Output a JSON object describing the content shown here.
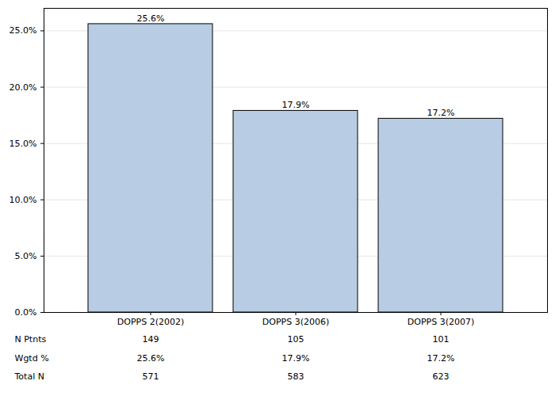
{
  "chart_data": {
    "type": "bar",
    "categories": [
      "DOPPS 2(2002)",
      "DOPPS 3(2006)",
      "DOPPS 3(2007)"
    ],
    "values": [
      25.6,
      17.9,
      17.2
    ],
    "value_labels": [
      "25.6%",
      "17.9%",
      "17.2%"
    ],
    "data_labels": true,
    "color": "#b8cce4",
    "ylim": [
      0,
      27
    ],
    "yticks": [
      {
        "value": 0,
        "label": "0.0%"
      },
      {
        "value": 5,
        "label": "5.0%"
      },
      {
        "value": 10,
        "label": "10.0%"
      },
      {
        "value": 15,
        "label": "15.0%"
      },
      {
        "value": 20,
        "label": "20.0%"
      },
      {
        "value": 25,
        "label": "25.0%"
      }
    ],
    "grid": true,
    "table": {
      "rows": [
        {
          "label": "N Ptnts",
          "values": [
            149,
            105,
            101
          ]
        },
        {
          "label": "Wgtd %",
          "values": [
            25.6,
            17.9,
            17.2
          ],
          "value_labels": [
            "25.6%",
            "17.9%",
            "17.2%"
          ]
        },
        {
          "label": "Total N",
          "values": [
            571,
            583,
            623
          ]
        }
      ]
    }
  }
}
